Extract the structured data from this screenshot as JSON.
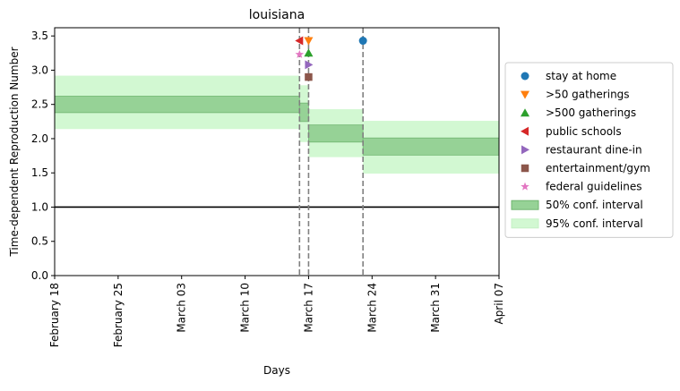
{
  "chart_data": {
    "type": "line",
    "title": "louisiana",
    "xlabel": "Days",
    "ylabel": "Time-dependent Reproduction Number",
    "x_axis": {
      "type": "date",
      "start": "2020-02-18",
      "end": "2020-04-07"
    },
    "ylim": [
      0,
      3.62
    ],
    "x_ticks": [
      {
        "date": "2020-02-18",
        "label": "February 18"
      },
      {
        "date": "2020-02-25",
        "label": "February 25"
      },
      {
        "date": "2020-03-03",
        "label": "March 03"
      },
      {
        "date": "2020-03-10",
        "label": "March 10"
      },
      {
        "date": "2020-03-17",
        "label": "March 17"
      },
      {
        "date": "2020-03-24",
        "label": "March 24"
      },
      {
        "date": "2020-03-31",
        "label": "March 31"
      },
      {
        "date": "2020-04-07",
        "label": "April 07"
      }
    ],
    "y_ticks": [
      {
        "value": 0.0,
        "label": "0.0"
      },
      {
        "value": 0.5,
        "label": "0.5"
      },
      {
        "value": 1.0,
        "label": "1.0"
      },
      {
        "value": 1.5,
        "label": "1.5"
      },
      {
        "value": 2.0,
        "label": "2.0"
      },
      {
        "value": 2.5,
        "label": "2.5"
      },
      {
        "value": 3.0,
        "label": "3.0"
      },
      {
        "value": 3.5,
        "label": "3.5"
      }
    ],
    "reference_line": {
      "y": 1.0,
      "color": "#000000"
    },
    "intervention_lines": [
      "2020-03-16",
      "2020-03-17",
      "2020-03-23"
    ],
    "interval_segments": [
      {
        "start": "2020-02-18",
        "end": "2020-03-16",
        "ci50": [
          2.38,
          2.62
        ],
        "ci95": [
          2.14,
          2.92
        ]
      },
      {
        "start": "2020-03-16",
        "end": "2020-03-17",
        "ci50": [
          2.25,
          2.52
        ],
        "ci95": [
          1.95,
          2.78
        ]
      },
      {
        "start": "2020-03-17",
        "end": "2020-03-23",
        "ci50": [
          1.95,
          2.2
        ],
        "ci95": [
          1.73,
          2.43
        ]
      },
      {
        "start": "2020-03-23",
        "end": "2020-04-07",
        "ci50": [
          1.76,
          2.01
        ],
        "ci95": [
          1.49,
          2.26
        ]
      }
    ],
    "markers": [
      {
        "name": "stay at home",
        "date": "2020-03-23",
        "y": 3.43,
        "shape": "circle",
        "color": "#1f77b4"
      },
      {
        "name": ">50 gatherings",
        "date": "2020-03-17",
        "y": 3.43,
        "shape": "triangle-down",
        "color": "#ff7f0e"
      },
      {
        "name": ">500 gatherings",
        "date": "2020-03-17",
        "y": 3.25,
        "shape": "triangle-up",
        "color": "#2ca02c"
      },
      {
        "name": "public schools",
        "date": "2020-03-16",
        "y": 3.43,
        "shape": "triangle-left",
        "color": "#d62728"
      },
      {
        "name": "restaurant dine-in",
        "date": "2020-03-17",
        "y": 3.08,
        "shape": "triangle-right",
        "color": "#9467bd"
      },
      {
        "name": "entertainment/gym",
        "date": "2020-03-17",
        "y": 2.9,
        "shape": "square",
        "color": "#8c564b"
      },
      {
        "name": "federal guidelines",
        "date": "2020-03-16",
        "y": 3.23,
        "shape": "star",
        "color": "#e377c2"
      }
    ],
    "legend": {
      "placement": "right-outside",
      "entries": [
        {
          "label": "stay at home",
          "kind": "marker",
          "shape": "circle",
          "color": "#1f77b4"
        },
        {
          "label": ">50 gatherings",
          "kind": "marker",
          "shape": "triangle-down",
          "color": "#ff7f0e"
        },
        {
          "label": ">500 gatherings",
          "kind": "marker",
          "shape": "triangle-up",
          "color": "#2ca02c"
        },
        {
          "label": "public schools",
          "kind": "marker",
          "shape": "triangle-left",
          "color": "#d62728"
        },
        {
          "label": "restaurant dine-in",
          "kind": "marker",
          "shape": "triangle-right",
          "color": "#9467bd"
        },
        {
          "label": "entertainment/gym",
          "kind": "marker",
          "shape": "square",
          "color": "#8c564b"
        },
        {
          "label": "federal guidelines",
          "kind": "marker",
          "shape": "star",
          "color": "#e377c2"
        },
        {
          "label": "50% conf. interval",
          "kind": "patch",
          "fill": "#96d296",
          "stroke": "#6fb56f"
        },
        {
          "label": "95% conf. interval",
          "kind": "patch",
          "fill": "#d2f8d2",
          "stroke": "#c4f0c4"
        }
      ]
    },
    "colors": {
      "ci50": "#96d296",
      "ci50_edge": "#6fb56f",
      "ci95": "#d2f8d2",
      "intervention_line": "#808080"
    }
  }
}
